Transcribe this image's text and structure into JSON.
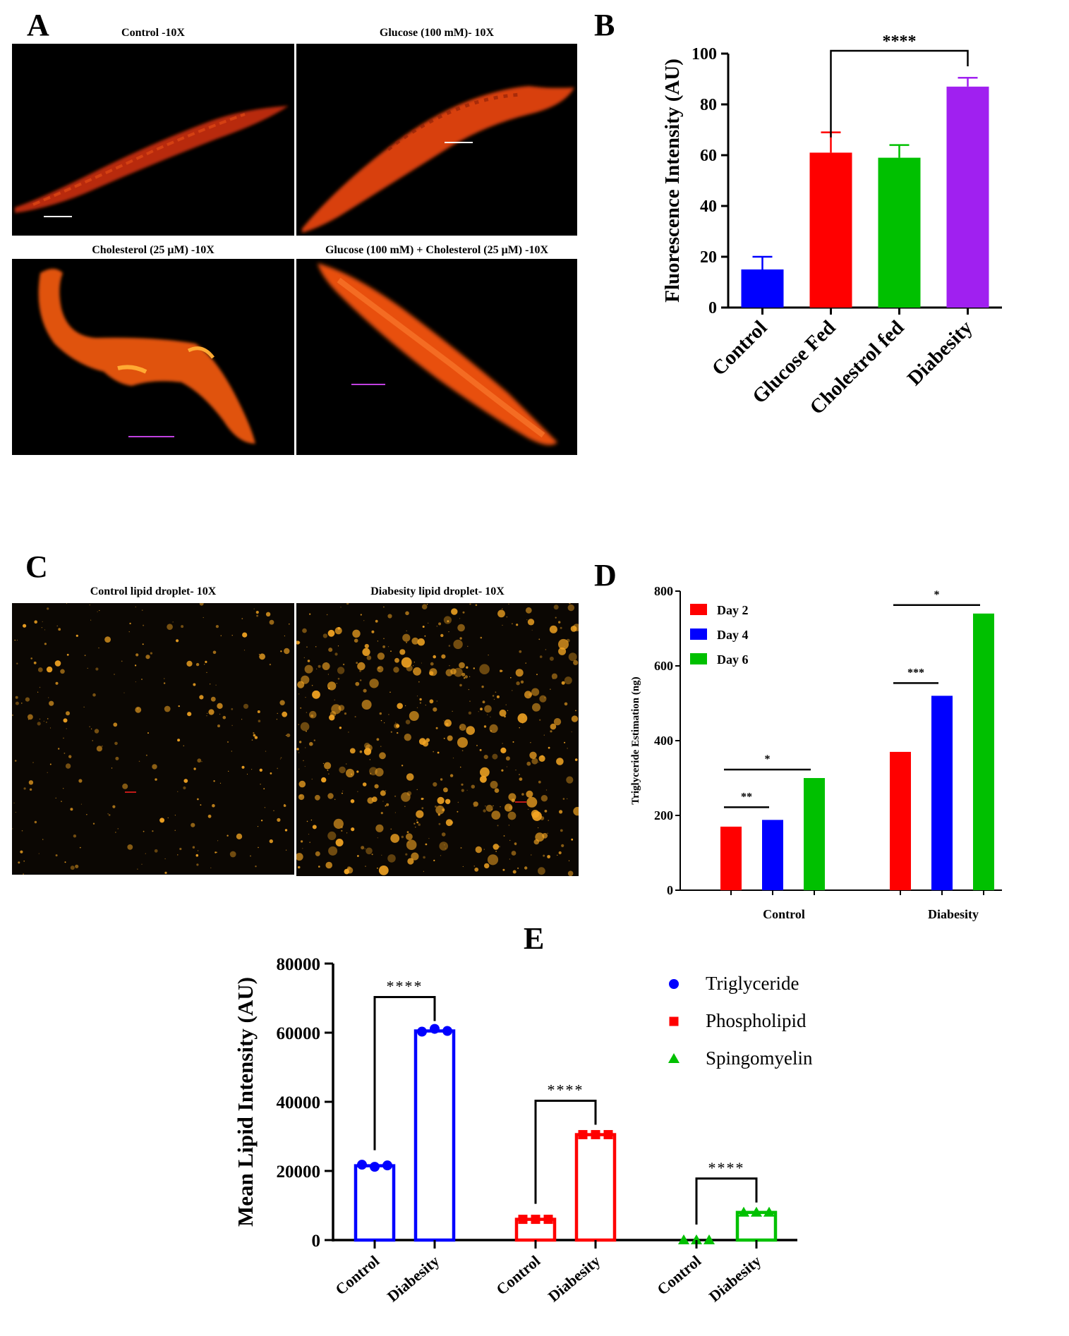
{
  "panels": {
    "a": {
      "letter": "A",
      "images": [
        {
          "title": "Control -10X"
        },
        {
          "title": "Glucose (100 mM)- 10X"
        },
        {
          "title": "Cholesterol (25 μM) -10X"
        },
        {
          "title": "Glucose (100 mM) + Cholesterol (25 μM) -10X"
        }
      ]
    },
    "b": {
      "letter": "B"
    },
    "c": {
      "letter": "C",
      "images": [
        {
          "title": "Control  lipid droplet- 10X"
        },
        {
          "title": "Diabesity lipid droplet- 10X"
        }
      ]
    },
    "d": {
      "letter": "D"
    },
    "e": {
      "letter": "E"
    }
  },
  "colors": {
    "blue": "#0000ff",
    "red": "#ff0000",
    "green": "#00c000",
    "purple": "#a020f0",
    "worm": "#e8420a",
    "droplet": "#f5a623"
  },
  "chart_data": [
    {
      "panel": "B",
      "type": "bar",
      "categories": [
        "Control",
        "Glucose Fed",
        "Cholestrol fed",
        "Diabesity"
      ],
      "values": [
        15,
        61,
        59,
        87
      ],
      "errors": [
        5,
        8,
        5,
        3.5
      ],
      "colors": [
        "#0000ff",
        "#ff0000",
        "#00c000",
        "#a020f0"
      ],
      "ylabel": "Fluorescence Intensity (AU)",
      "ylim": [
        0,
        100
      ],
      "yticks": [
        0,
        20,
        40,
        60,
        80,
        100
      ],
      "significance": [
        {
          "from": "Glucose Fed",
          "to": "Diabesity",
          "label": "****"
        }
      ]
    },
    {
      "panel": "D",
      "type": "bar",
      "categories": [
        "Control",
        "Diabesity"
      ],
      "series": [
        {
          "name": "Day 2",
          "color": "#ff0000",
          "values": [
            170,
            370
          ]
        },
        {
          "name": "Day 4",
          "color": "#0000ff",
          "values": [
            188,
            520
          ]
        },
        {
          "name": "Day 6",
          "color": "#00c000",
          "values": [
            300,
            740
          ]
        }
      ],
      "ylabel": "Triglyceride Estimation (ng)",
      "ylim": [
        0,
        800
      ],
      "yticks": [
        0,
        200,
        400,
        600,
        800
      ],
      "legend": "top-left",
      "significance": [
        {
          "group": "Control",
          "from": "Day 2",
          "to": "Day 4",
          "label": "**"
        },
        {
          "group": "Control",
          "from": "Day 2",
          "to": "Day 6",
          "label": "*"
        },
        {
          "group": "Diabesity",
          "from": "Day 2",
          "to": "Day 4",
          "label": "***"
        },
        {
          "group": "Diabesity",
          "from": "Day 2",
          "to": "Day 6",
          "label": "*"
        }
      ]
    },
    {
      "panel": "E",
      "type": "bar",
      "ylabel": "Mean Lipid Intensity (AU)",
      "ylim": [
        0,
        80000
      ],
      "yticks": [
        "0",
        "20000",
        "40000",
        "60000",
        "80000"
      ],
      "legend": "top-right",
      "groups": [
        {
          "name": "Triglyceride",
          "color": "#0000ff",
          "marker": "circle",
          "bars": [
            {
              "label": "Control",
              "value": 21500,
              "points": [
                21800,
                21200,
                21600
              ]
            },
            {
              "label": "Diabesity",
              "value": 60500,
              "points": [
                60300,
                61100,
                60500
              ]
            }
          ],
          "significance": "****"
        },
        {
          "name": "Phospholipid",
          "color": "#ff0000",
          "marker": "square",
          "bars": [
            {
              "label": "Control",
              "value": 6000,
              "points": [
                6000,
                6000,
                6000
              ]
            },
            {
              "label": "Diabesity",
              "value": 30500,
              "points": [
                30500,
                30500,
                30500
              ]
            }
          ],
          "significance": "****"
        },
        {
          "name": "Spingomyelin",
          "color": "#00c000",
          "marker": "triangle",
          "bars": [
            {
              "label": "Control",
              "value": 0,
              "points": [
                0,
                0,
                0
              ]
            },
            {
              "label": "Diabesity",
              "value": 8000,
              "points": [
                8000,
                8000,
                8000
              ]
            }
          ],
          "significance": "****"
        }
      ]
    }
  ]
}
